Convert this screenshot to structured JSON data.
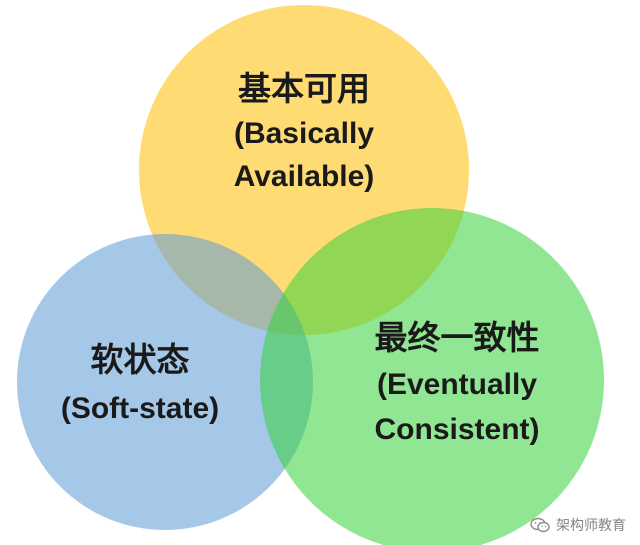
{
  "diagram": {
    "type": "venn",
    "circles": [
      {
        "id": "basically-available",
        "title_cn": "基本可用",
        "title_en_line1": "(Basically",
        "title_en_line2": "Available)",
        "fill": "#FFC000"
      },
      {
        "id": "soft-state",
        "title_cn": "软状态",
        "title_en_line1": "(Soft-state)",
        "fill": "#5B9BD5"
      },
      {
        "id": "eventually-consistent",
        "title_cn": "最终一致性",
        "title_en_line1": "(Eventually",
        "title_en_line2": "Consistent)",
        "fill": "#36D13A"
      }
    ]
  },
  "watermark": {
    "text": "架构师教育",
    "icon": "wechat-icon"
  }
}
